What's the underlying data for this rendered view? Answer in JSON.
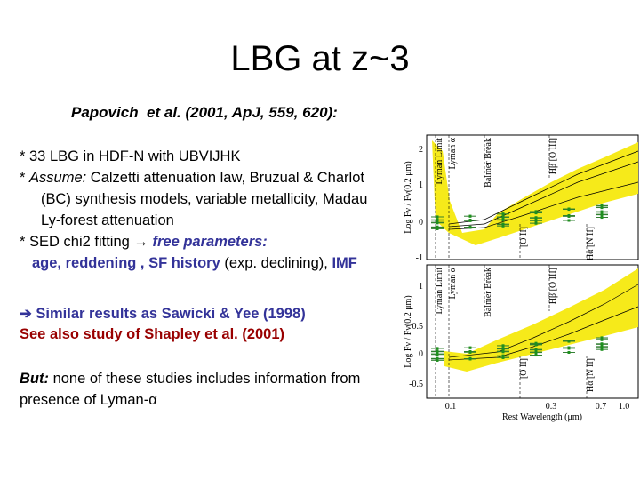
{
  "title": "LBG at z~3",
  "reference": "Papovich  et al. (2001, ApJ, 559, 620):",
  "lines": [
    [
      "* 33 LBG in HDF-N with UBVIJHK"
    ],
    [
      "* ",
      "Assume:",
      " Calzetti attenuation law, Bruzual & Charlot"
    ],
    [
      "(BC) synthesis models, variable metallicity, Madau"
    ],
    [
      "Ly-forest attenuation"
    ],
    [
      "* SED chi2 fitting → ",
      "free parameters:"
    ],
    [
      "age, reddening , SF history",
      " (exp. declining), ",
      "IMF"
    ],
    [
      "➔ Similar results as Sawicki & Yee (1998)"
    ],
    [
      "See also study of Shapley et al. (2001)"
    ],
    [
      "But:",
      " none of these studies includes information from"
    ],
    [
      "presence of Lyman-α"
    ]
  ],
  "figure": {
    "y_label": "Log Fν / Fν(0.2 μm)",
    "x_label": "Rest Wavelength (μm)",
    "x_ticks": [
      "0.1",
      "0.3",
      "0.7",
      "1.0"
    ],
    "panels": [
      {
        "y_ticks": [
          "2",
          "1",
          "0",
          "-1"
        ],
        "annotations": [
          "Lyman Limit",
          "Lyman α",
          "Balmer Break",
          "[O II]",
          "Hβ [O III]",
          "Hα [N II]"
        ]
      },
      {
        "y_ticks": [
          "1",
          "0.5",
          "0",
          "-0.5"
        ],
        "annotations": [
          "Lyman Limit",
          "Lyman α",
          "Balmer Break",
          "[O II]",
          "Hβ [O III]",
          "Hα [N II]"
        ]
      }
    ]
  }
}
